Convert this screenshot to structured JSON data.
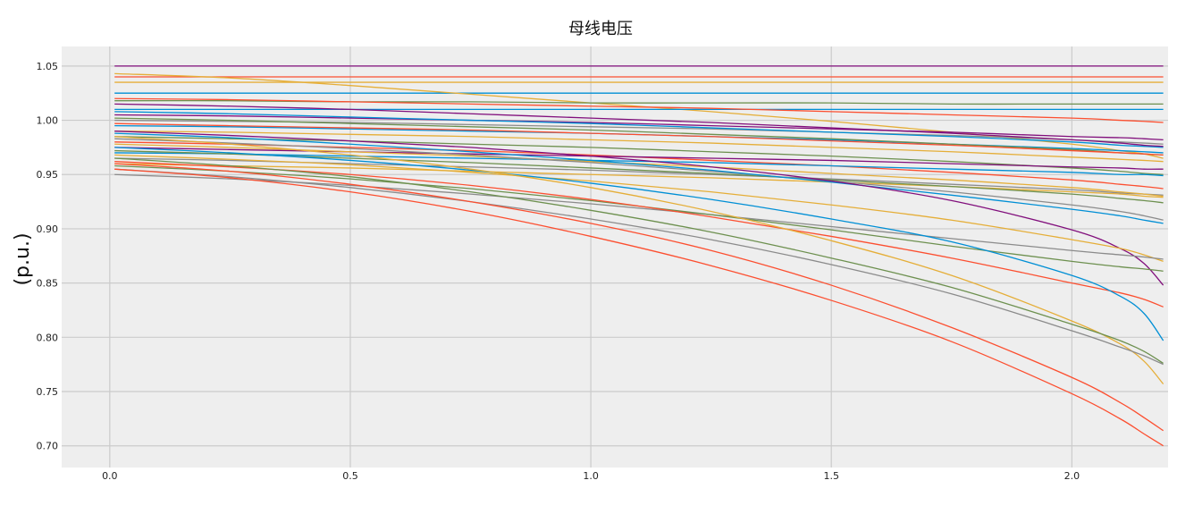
{
  "chart_data": {
    "type": "line",
    "title": "母线电压",
    "xlabel": "",
    "ylabel": "(p.u.)",
    "xlim": [
      -0.1,
      2.2
    ],
    "ylim": [
      0.68,
      1.068
    ],
    "xticks": [
      "0.0",
      "0.5",
      "1.0",
      "1.5",
      "2.0"
    ],
    "xtick_values": [
      0.0,
      0.5,
      1.0,
      1.5,
      2.0
    ],
    "yticks": [
      "0.70",
      "0.75",
      "0.80",
      "0.85",
      "0.90",
      "0.95",
      "1.00",
      "1.05"
    ],
    "ytick_values": [
      0.7,
      0.75,
      0.8,
      0.85,
      0.9,
      0.95,
      1.0,
      1.05
    ],
    "grid": true,
    "legend": "none",
    "plot_background": "#eeeeee",
    "grid_color": "#cbcbcb",
    "palette": [
      "#008fd5",
      "#fc4f30",
      "#e5ae38",
      "#6d904f",
      "#8b8b8b",
      "#810f7c"
    ],
    "x": [
      0.01,
      0.25,
      0.5,
      0.75,
      1.0,
      1.25,
      1.5,
      1.75,
      2.0,
      2.1,
      2.15,
      2.19
    ],
    "series": [
      {
        "color": "#810f7c",
        "values": [
          1.05,
          1.05,
          1.05,
          1.05,
          1.05,
          1.05,
          1.05,
          1.05,
          1.05,
          1.05,
          1.05,
          1.05
        ]
      },
      {
        "color": "#fc4f30",
        "values": [
          1.04,
          1.04,
          1.04,
          1.04,
          1.04,
          1.04,
          1.04,
          1.04,
          1.04,
          1.04,
          1.04,
          1.04
        ]
      },
      {
        "color": "#e5ae38",
        "values": [
          1.035,
          1.035,
          1.035,
          1.035,
          1.035,
          1.035,
          1.035,
          1.035,
          1.035,
          1.035,
          1.035,
          1.035
        ]
      },
      {
        "color": "#008fd5",
        "values": [
          1.025,
          1.025,
          1.025,
          1.025,
          1.025,
          1.025,
          1.025,
          1.025,
          1.025,
          1.025,
          1.025,
          1.025
        ]
      },
      {
        "color": "#e5ae38",
        "values": [
          1.043,
          1.039,
          1.032,
          1.024,
          1.016,
          1.008,
          0.999,
          0.989,
          0.978,
          0.972,
          0.969,
          0.965
        ]
      },
      {
        "color": "#6d904f",
        "values": [
          1.018,
          1.018,
          1.017,
          1.017,
          1.016,
          1.016,
          1.016,
          1.015,
          1.015,
          1.015,
          1.015,
          1.015
        ]
      },
      {
        "color": "#008fd5",
        "values": [
          1.01,
          1.01,
          1.01,
          1.01,
          1.01,
          1.01,
          1.01,
          1.01,
          1.01,
          1.01,
          1.01,
          1.01
        ]
      },
      {
        "color": "#fc4f30",
        "values": [
          1.02,
          1.019,
          1.017,
          1.015,
          1.013,
          1.011,
          1.008,
          1.005,
          1.002,
          1.0,
          0.999,
          0.998
        ]
      },
      {
        "color": "#810f7c",
        "values": [
          1.005,
          1.004,
          1.002,
          1.0,
          0.998,
          0.995,
          0.992,
          0.989,
          0.985,
          0.984,
          0.983,
          0.982
        ]
      },
      {
        "color": "#8b8b8b",
        "values": [
          1.0,
          0.999,
          0.998,
          0.996,
          0.994,
          0.992,
          0.989,
          0.986,
          0.982,
          0.98,
          0.979,
          0.978
        ]
      },
      {
        "color": "#008fd5",
        "values": [
          0.995,
          0.994,
          0.992,
          0.99,
          0.988,
          0.985,
          0.982,
          0.978,
          0.974,
          0.972,
          0.971,
          0.97
        ]
      },
      {
        "color": "#e5ae38",
        "values": [
          0.99,
          0.989,
          0.987,
          0.985,
          0.982,
          0.979,
          0.975,
          0.971,
          0.966,
          0.964,
          0.963,
          0.962
        ]
      },
      {
        "color": "#6d904f",
        "values": [
          0.985,
          0.983,
          0.981,
          0.978,
          0.975,
          0.971,
          0.967,
          0.962,
          0.956,
          0.953,
          0.951,
          0.95
        ]
      },
      {
        "color": "#fc4f30",
        "values": [
          0.98,
          0.978,
          0.975,
          0.972,
          0.968,
          0.963,
          0.958,
          0.952,
          0.945,
          0.941,
          0.939,
          0.937
        ]
      },
      {
        "color": "#810f7c",
        "values": [
          0.975,
          0.973,
          0.971,
          0.969,
          0.967,
          0.965,
          0.963,
          0.96,
          0.957,
          0.956,
          0.955,
          0.955
        ]
      },
      {
        "color": "#008fd5",
        "values": [
          0.97,
          0.969,
          0.967,
          0.965,
          0.963,
          0.961,
          0.958,
          0.955,
          0.952,
          0.95,
          0.95,
          0.949
        ]
      },
      {
        "color": "#8b8b8b",
        "values": [
          0.965,
          0.963,
          0.96,
          0.957,
          0.954,
          0.95,
          0.946,
          0.941,
          0.936,
          0.933,
          0.932,
          0.931
        ]
      },
      {
        "color": "#e5ae38",
        "values": [
          0.96,
          0.958,
          0.956,
          0.953,
          0.95,
          0.947,
          0.943,
          0.939,
          0.934,
          0.932,
          0.93,
          0.929
        ]
      },
      {
        "color": "#6d904f",
        "values": [
          1.002,
          1.0,
          0.997,
          0.994,
          0.991,
          0.987,
          0.983,
          0.978,
          0.973,
          0.97,
          0.969,
          0.968
        ]
      },
      {
        "color": "#fc4f30",
        "values": [
          0.997,
          0.995,
          0.993,
          0.991,
          0.988,
          0.985,
          0.981,
          0.977,
          0.972,
          0.97,
          0.969,
          0.968
        ]
      },
      {
        "color": "#008fd5",
        "values": [
          1.008,
          1.006,
          1.003,
          1.0,
          0.997,
          0.993,
          0.989,
          0.985,
          0.98,
          0.977,
          0.976,
          0.975
        ]
      },
      {
        "color": "#810f7c",
        "values": [
          1.015,
          1.013,
          1.01,
          1.006,
          1.002,
          0.998,
          0.993,
          0.988,
          0.982,
          0.979,
          0.977,
          0.976
        ]
      },
      {
        "color": "#e5ae38",
        "values": [
          0.978,
          0.975,
          0.971,
          0.967,
          0.962,
          0.957,
          0.951,
          0.945,
          0.938,
          0.934,
          0.932,
          0.93
        ]
      },
      {
        "color": "#6d904f",
        "values": [
          0.972,
          0.969,
          0.965,
          0.961,
          0.956,
          0.951,
          0.945,
          0.939,
          0.932,
          0.928,
          0.926,
          0.924
        ]
      },
      {
        "color": "#8b8b8b",
        "values": [
          0.983,
          0.979,
          0.974,
          0.968,
          0.961,
          0.953,
          0.944,
          0.934,
          0.922,
          0.916,
          0.912,
          0.908
        ]
      },
      {
        "color": "#008fd5",
        "values": [
          0.988,
          0.984,
          0.978,
          0.971,
          0.963,
          0.954,
          0.943,
          0.931,
          0.918,
          0.912,
          0.908,
          0.905
        ]
      },
      {
        "color": "#810f7c",
        "values": [
          0.99,
          0.986,
          0.981,
          0.975,
          0.967,
          0.957,
          0.944,
          0.926,
          0.899,
          0.882,
          0.868,
          0.848
        ]
      },
      {
        "color": "#e5ae38",
        "values": [
          0.968,
          0.964,
          0.959,
          0.952,
          0.944,
          0.934,
          0.922,
          0.908,
          0.89,
          0.882,
          0.876,
          0.87
        ]
      },
      {
        "color": "#8b8b8b",
        "values": [
          0.95,
          0.946,
          0.94,
          0.932,
          0.923,
          0.913,
          0.902,
          0.891,
          0.88,
          0.876,
          0.874,
          0.872
        ]
      },
      {
        "color": "#6d904f",
        "values": [
          0.958,
          0.953,
          0.946,
          0.937,
          0.926,
          0.913,
          0.899,
          0.884,
          0.87,
          0.865,
          0.863,
          0.861
        ]
      },
      {
        "color": "#fc4f30",
        "values": [
          0.962,
          0.957,
          0.95,
          0.94,
          0.927,
          0.911,
          0.893,
          0.873,
          0.85,
          0.841,
          0.835,
          0.828
        ]
      },
      {
        "color": "#008fd5",
        "values": [
          0.975,
          0.97,
          0.963,
          0.954,
          0.942,
          0.927,
          0.909,
          0.888,
          0.857,
          0.838,
          0.822,
          0.797
        ]
      },
      {
        "color": "#e5ae38",
        "values": [
          0.985,
          0.978,
          0.968,
          0.955,
          0.938,
          0.916,
          0.889,
          0.857,
          0.815,
          0.794,
          0.778,
          0.757
        ]
      },
      {
        "color": "#6d904f",
        "values": [
          0.965,
          0.958,
          0.948,
          0.934,
          0.917,
          0.897,
          0.873,
          0.846,
          0.812,
          0.797,
          0.787,
          0.776
        ]
      },
      {
        "color": "#8b8b8b",
        "values": [
          0.955,
          0.948,
          0.938,
          0.925,
          0.909,
          0.89,
          0.867,
          0.84,
          0.806,
          0.791,
          0.783,
          0.775
        ]
      },
      {
        "color": "#fc4f30",
        "values": [
          0.96,
          0.953,
          0.941,
          0.925,
          0.905,
          0.88,
          0.848,
          0.809,
          0.763,
          0.74,
          0.726,
          0.714
        ]
      },
      {
        "color": "#fc4f30",
        "values": [
          0.955,
          0.947,
          0.934,
          0.916,
          0.893,
          0.866,
          0.834,
          0.796,
          0.748,
          0.725,
          0.711,
          0.7
        ]
      }
    ]
  }
}
